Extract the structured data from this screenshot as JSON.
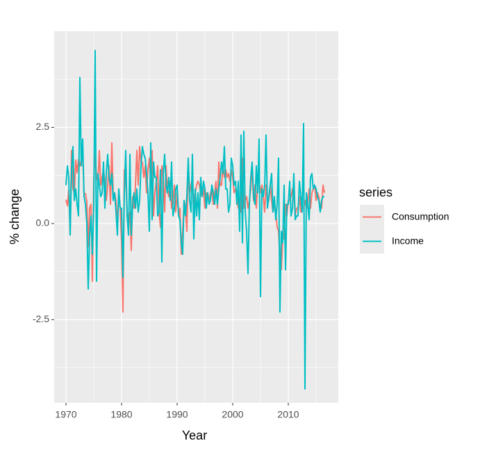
{
  "chart_data": {
    "type": "line",
    "xlabel": "Year",
    "ylabel": "% change",
    "legend_title": "series",
    "legend_position": "right",
    "grid": true,
    "xlim": [
      1967.875,
      2019
    ],
    "xticks": [
      1970,
      1980,
      1990,
      2000,
      2010
    ],
    "ylim": [
      -4.66,
      5.0
    ],
    "yticks": [
      -2.5,
      {
        "value": 0,
        "label": "0.0"
      },
      2.5
    ],
    "x": [
      1970,
      1970.25,
      1970.5,
      1970.75,
      1971,
      1971.25,
      1971.5,
      1971.75,
      1972,
      1972.25,
      1972.5,
      1972.75,
      1973,
      1973.25,
      1973.5,
      1973.75,
      1974,
      1974.25,
      1974.5,
      1974.75,
      1975,
      1975.25,
      1975.5,
      1975.75,
      1976,
      1976.25,
      1976.5,
      1976.75,
      1977,
      1977.25,
      1977.5,
      1977.75,
      1978,
      1978.25,
      1978.5,
      1978.75,
      1979,
      1979.25,
      1979.5,
      1979.75,
      1980,
      1980.25,
      1980.5,
      1980.75,
      1981,
      1981.25,
      1981.5,
      1981.75,
      1982,
      1982.25,
      1982.5,
      1982.75,
      1983,
      1983.25,
      1983.5,
      1983.75,
      1984,
      1984.25,
      1984.5,
      1984.75,
      1985,
      1985.25,
      1985.5,
      1985.75,
      1986,
      1986.25,
      1986.5,
      1986.75,
      1987,
      1987.25,
      1987.5,
      1987.75,
      1988,
      1988.25,
      1988.5,
      1988.75,
      1989,
      1989.25,
      1989.5,
      1989.75,
      1990,
      1990.25,
      1990.5,
      1990.75,
      1991,
      1991.25,
      1991.5,
      1991.75,
      1992,
      1992.25,
      1992.5,
      1992.75,
      1993,
      1993.25,
      1993.5,
      1993.75,
      1994,
      1994.25,
      1994.5,
      1994.75,
      1995,
      1995.25,
      1995.5,
      1995.75,
      1996,
      1996.25,
      1996.5,
      1996.75,
      1997,
      1997.25,
      1997.5,
      1997.75,
      1998,
      1998.25,
      1998.5,
      1998.75,
      1999,
      1999.25,
      1999.5,
      1999.75,
      2000,
      2000.25,
      2000.5,
      2000.75,
      2001,
      2001.25,
      2001.5,
      2001.75,
      2002,
      2002.25,
      2002.5,
      2002.75,
      2003,
      2003.25,
      2003.5,
      2003.75,
      2004,
      2004.25,
      2004.5,
      2004.75,
      2005,
      2005.25,
      2005.5,
      2005.75,
      2006,
      2006.25,
      2006.5,
      2006.75,
      2007,
      2007.25,
      2007.5,
      2007.75,
      2008,
      2008.25,
      2008.5,
      2008.75,
      2009,
      2009.25,
      2009.5,
      2009.75,
      2010,
      2010.25,
      2010.5,
      2010.75,
      2011,
      2011.25,
      2011.5,
      2011.75,
      2012,
      2012.25,
      2012.5,
      2012.75,
      2013,
      2013.25,
      2013.5,
      2013.75,
      2014,
      2014.25,
      2014.5,
      2014.75,
      2015,
      2015.25,
      2015.5,
      2015.75,
      2016,
      2016.25,
      2016.5
    ],
    "series": [
      {
        "name": "Consumption",
        "color": "#F8766D",
        "values": [
          0.62,
          0.46,
          0.88,
          -0.27,
          1.9,
          0.91,
          0.79,
          1.65,
          1.32,
          1.67,
          1.5,
          1.65,
          1.86,
          0.78,
          0.78,
          0.57,
          -0.6,
          0.4,
          0.5,
          -1.5,
          1.2,
          1.8,
          1.2,
          1.1,
          1.9,
          1.0,
          1.2,
          1.4,
          1.1,
          0.6,
          1.0,
          1.5,
          0.5,
          2.1,
          0.7,
          0.8,
          0.6,
          -0.1,
          0.9,
          0.4,
          -0.5,
          -2.3,
          1.4,
          1.2,
          0.3,
          0.0,
          0.3,
          -0.7,
          0.7,
          0.4,
          1.0,
          1.9,
          1.0,
          2.0,
          1.6,
          1.6,
          1.2,
          1.5,
          0.8,
          1.4,
          1.7,
          1.0,
          1.9,
          0.2,
          0.8,
          1.1,
          1.5,
          0.3,
          -0.1,
          1.5,
          1.2,
          0.3,
          1.5,
          0.9,
          0.7,
          1.1,
          0.4,
          0.5,
          1.0,
          0.3,
          0.8,
          0.2,
          0.4,
          -0.8,
          -0.2,
          0.6,
          0.4,
          -0.2,
          1.6,
          0.8,
          1.0,
          1.2,
          0.5,
          0.8,
          1.0,
          1.1,
          1.0,
          0.8,
          0.7,
          0.9,
          0.4,
          0.8,
          0.7,
          0.6,
          0.8,
          0.9,
          0.5,
          0.8,
          1.1,
          0.4,
          1.6,
          1.0,
          1.0,
          1.5,
          1.2,
          1.4,
          1.2,
          1.3,
          1.1,
          1.4,
          1.2,
          0.8,
          0.9,
          0.8,
          0.4,
          0.4,
          0.3,
          1.7,
          0.4,
          0.6,
          0.7,
          0.4,
          0.6,
          0.9,
          1.5,
          0.6,
          1.0,
          0.4,
          1.1,
          1.1,
          0.8,
          1.0,
          0.7,
          0.3,
          1.0,
          0.6,
          0.6,
          1.0,
          0.6,
          0.3,
          0.5,
          0.3,
          -0.1,
          -0.2,
          -0.9,
          -1.2,
          -0.4,
          -0.4,
          0.5,
          0.2,
          0.6,
          0.6,
          0.7,
          0.9,
          0.8,
          0.2,
          0.4,
          0.4,
          0.7,
          0.3,
          0.4,
          0.4,
          0.6,
          0.4,
          0.5,
          0.9,
          0.4,
          0.8,
          0.9,
          1.0,
          0.6,
          0.8,
          0.7,
          0.4,
          0.4,
          1.0,
          0.8
        ]
      },
      {
        "name": "Income",
        "color": "#00BFC4",
        "values": [
          1.0,
          1.5,
          1.2,
          -0.3,
          1.4,
          2.0,
          0.6,
          0.9,
          0.5,
          0.2,
          3.8,
          1.5,
          2.2,
          0.7,
          0.5,
          0.0,
          -1.7,
          -0.3,
          0.2,
          -0.8,
          0.5,
          4.5,
          -1.5,
          1.3,
          1.0,
          0.7,
          0.8,
          1.6,
          0.4,
          1.3,
          1.8,
          1.2,
          1.0,
          1.3,
          0.6,
          0.8,
          0.3,
          -0.3,
          0.9,
          0.4,
          0.4,
          -1.4,
          0.8,
          1.9,
          0.2,
          -0.3,
          1.8,
          -0.3,
          0.5,
          0.8,
          0.4,
          0.9,
          0.3,
          0.6,
          1.5,
          2.0,
          1.8,
          1.7,
          1.3,
          0.8,
          -0.2,
          2.1,
          0.1,
          1.6,
          1.2,
          1.2,
          0.2,
          0.3,
          1.4,
          -1.0,
          1.3,
          1.8,
          1.0,
          0.8,
          1.2,
          0.6,
          1.6,
          0.2,
          0.4,
          0.9,
          1.0,
          0.2,
          0.1,
          -0.5,
          -0.8,
          0.6,
          0.2,
          0.7,
          1.7,
          0.6,
          0.3,
          1.8,
          -0.4,
          0.9,
          0.2,
          0.8,
          0.1,
          1.2,
          0.7,
          1.1,
          0.9,
          0.4,
          0.8,
          0.5,
          0.6,
          1.0,
          0.8,
          0.5,
          0.9,
          0.5,
          0.9,
          1.2,
          1.6,
          1.3,
          2.0,
          0.9,
          0.9,
          0.3,
          0.5,
          1.7,
          1.5,
          1.0,
          1.1,
          0.5,
          1.1,
          -0.2,
          2.3,
          -0.5,
          2.4,
          0.3,
          -0.2,
          -1.3,
          0.5,
          1.2,
          1.6,
          0.7,
          0.5,
          1.5,
          0.8,
          2.2,
          -1.9,
          0.9,
          0.7,
          1.0,
          2.3,
          0.4,
          0.7,
          1.0,
          1.3,
          0.3,
          0.7,
          0.1,
          0.5,
          1.7,
          -2.3,
          -0.2,
          -0.5,
          1.0,
          -1.2,
          0.5,
          0.5,
          1.1,
          0.2,
          0.4,
          1.3,
          0.1,
          0.2,
          0.2,
          1.1,
          0.7,
          0.3,
          2.6,
          -4.3,
          0.8,
          0.5,
          0.1,
          1.2,
          1.3,
          0.9,
          1.0,
          0.9,
          0.7,
          0.6,
          0.3,
          0.6,
          0.7,
          0.7
        ]
      }
    ]
  }
}
